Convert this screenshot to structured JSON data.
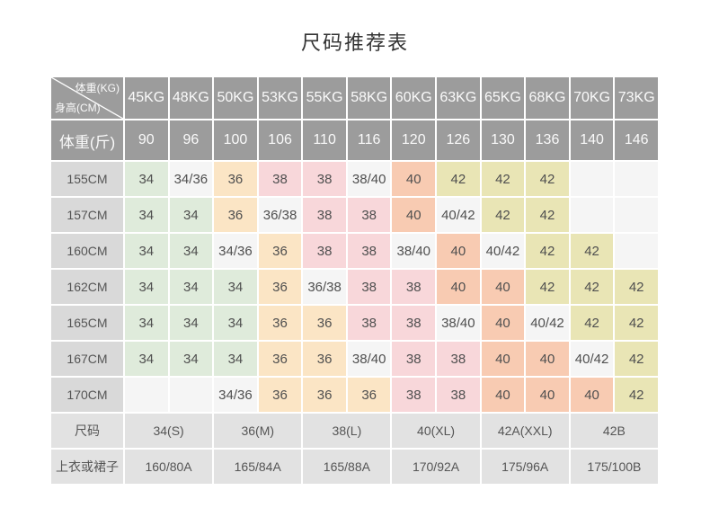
{
  "title": "尺码推荐表",
  "chart_data": {
    "type": "table",
    "title": "尺码推荐表",
    "corner": {
      "top_right": "体重(KG)",
      "bottom_left": "身高(CM)"
    },
    "columns_kg": [
      "45KG",
      "48KG",
      "50KG",
      "53KG",
      "55KG",
      "58KG",
      "60KG",
      "63KG",
      "65KG",
      "68KG",
      "70KG",
      "73KG"
    ],
    "weight_jin_row": {
      "label": "体重(斤)",
      "values": [
        "90",
        "96",
        "100",
        "106",
        "110",
        "116",
        "120",
        "126",
        "130",
        "136",
        "140",
        "146"
      ]
    },
    "body_rows": [
      {
        "label": "155CM",
        "cells": [
          "34",
          "34/36",
          "36",
          "38",
          "38",
          "38/40",
          "40",
          "42",
          "42",
          "42",
          "",
          ""
        ]
      },
      {
        "label": "157CM",
        "cells": [
          "34",
          "34",
          "36",
          "36/38",
          "38",
          "38",
          "40",
          "40/42",
          "42",
          "42",
          "",
          ""
        ]
      },
      {
        "label": "160CM",
        "cells": [
          "34",
          "34",
          "34/36",
          "36",
          "38",
          "38",
          "38/40",
          "40",
          "40/42",
          "42",
          "42",
          ""
        ]
      },
      {
        "label": "162CM",
        "cells": [
          "34",
          "34",
          "34",
          "36",
          "36/38",
          "38",
          "38",
          "40",
          "40",
          "42",
          "42",
          "42"
        ]
      },
      {
        "label": "165CM",
        "cells": [
          "34",
          "34",
          "34",
          "36",
          "36",
          "38",
          "38",
          "38/40",
          "40",
          "40/42",
          "42",
          "42"
        ]
      },
      {
        "label": "167CM",
        "cells": [
          "34",
          "34",
          "34",
          "36",
          "36",
          "38/40",
          "38",
          "38",
          "40",
          "40",
          "40/42",
          "42"
        ]
      },
      {
        "label": "170CM",
        "cells": [
          "",
          "",
          "34/36",
          "36",
          "36",
          "36",
          "38",
          "38",
          "40",
          "40",
          "40",
          "42"
        ]
      }
    ],
    "summary_rows": [
      {
        "label": "尺码",
        "values": [
          "34(S)",
          "36(M)",
          "38(L)",
          "40(XL)",
          "42A(XXL)",
          "42B"
        ]
      },
      {
        "label": "上衣或裙子",
        "values": [
          "160/80A",
          "165/84A",
          "165/88A",
          "170/92A",
          "175/96A",
          "175/100B"
        ]
      }
    ]
  },
  "colors": {
    "header_bg": "#9c9c9c",
    "header_text": "#fafafa",
    "row_label_bg": "#d9d9d9",
    "summary_bg": "#e2e2e2",
    "cell_text": "#4f4f4f",
    "mixed_or_empty_bg": "#f5f5f5",
    "value_colors": {
      "34": "#dfebdb",
      "36": "#fbe5c5",
      "38": "#f8d7da",
      "40": "#f8cbb2",
      "42": "#e9e5b5"
    }
  }
}
